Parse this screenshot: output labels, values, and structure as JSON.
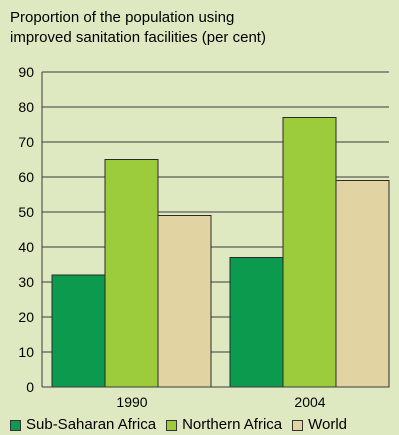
{
  "chart_data": {
    "type": "bar",
    "title_lines": [
      "Proportion of the population using",
      "improved sanitation facilities (per cent)"
    ],
    "categories": [
      "1990",
      "2004"
    ],
    "series": [
      {
        "name": "Sub-Saharan Africa",
        "values": [
          32,
          37
        ],
        "color": "#0b9a4e"
      },
      {
        "name": "Northern Africa",
        "values": [
          65,
          77
        ],
        "color": "#9ccc3c"
      },
      {
        "name": "World",
        "values": [
          49,
          59
        ],
        "color": "#e2d3a3"
      }
    ],
    "ylim": [
      0,
      90
    ],
    "yticks": [
      "0",
      "10",
      "20",
      "30",
      "40",
      "50",
      "60",
      "70",
      "80",
      "90"
    ],
    "grid": true,
    "legend_position": "bottom"
  }
}
